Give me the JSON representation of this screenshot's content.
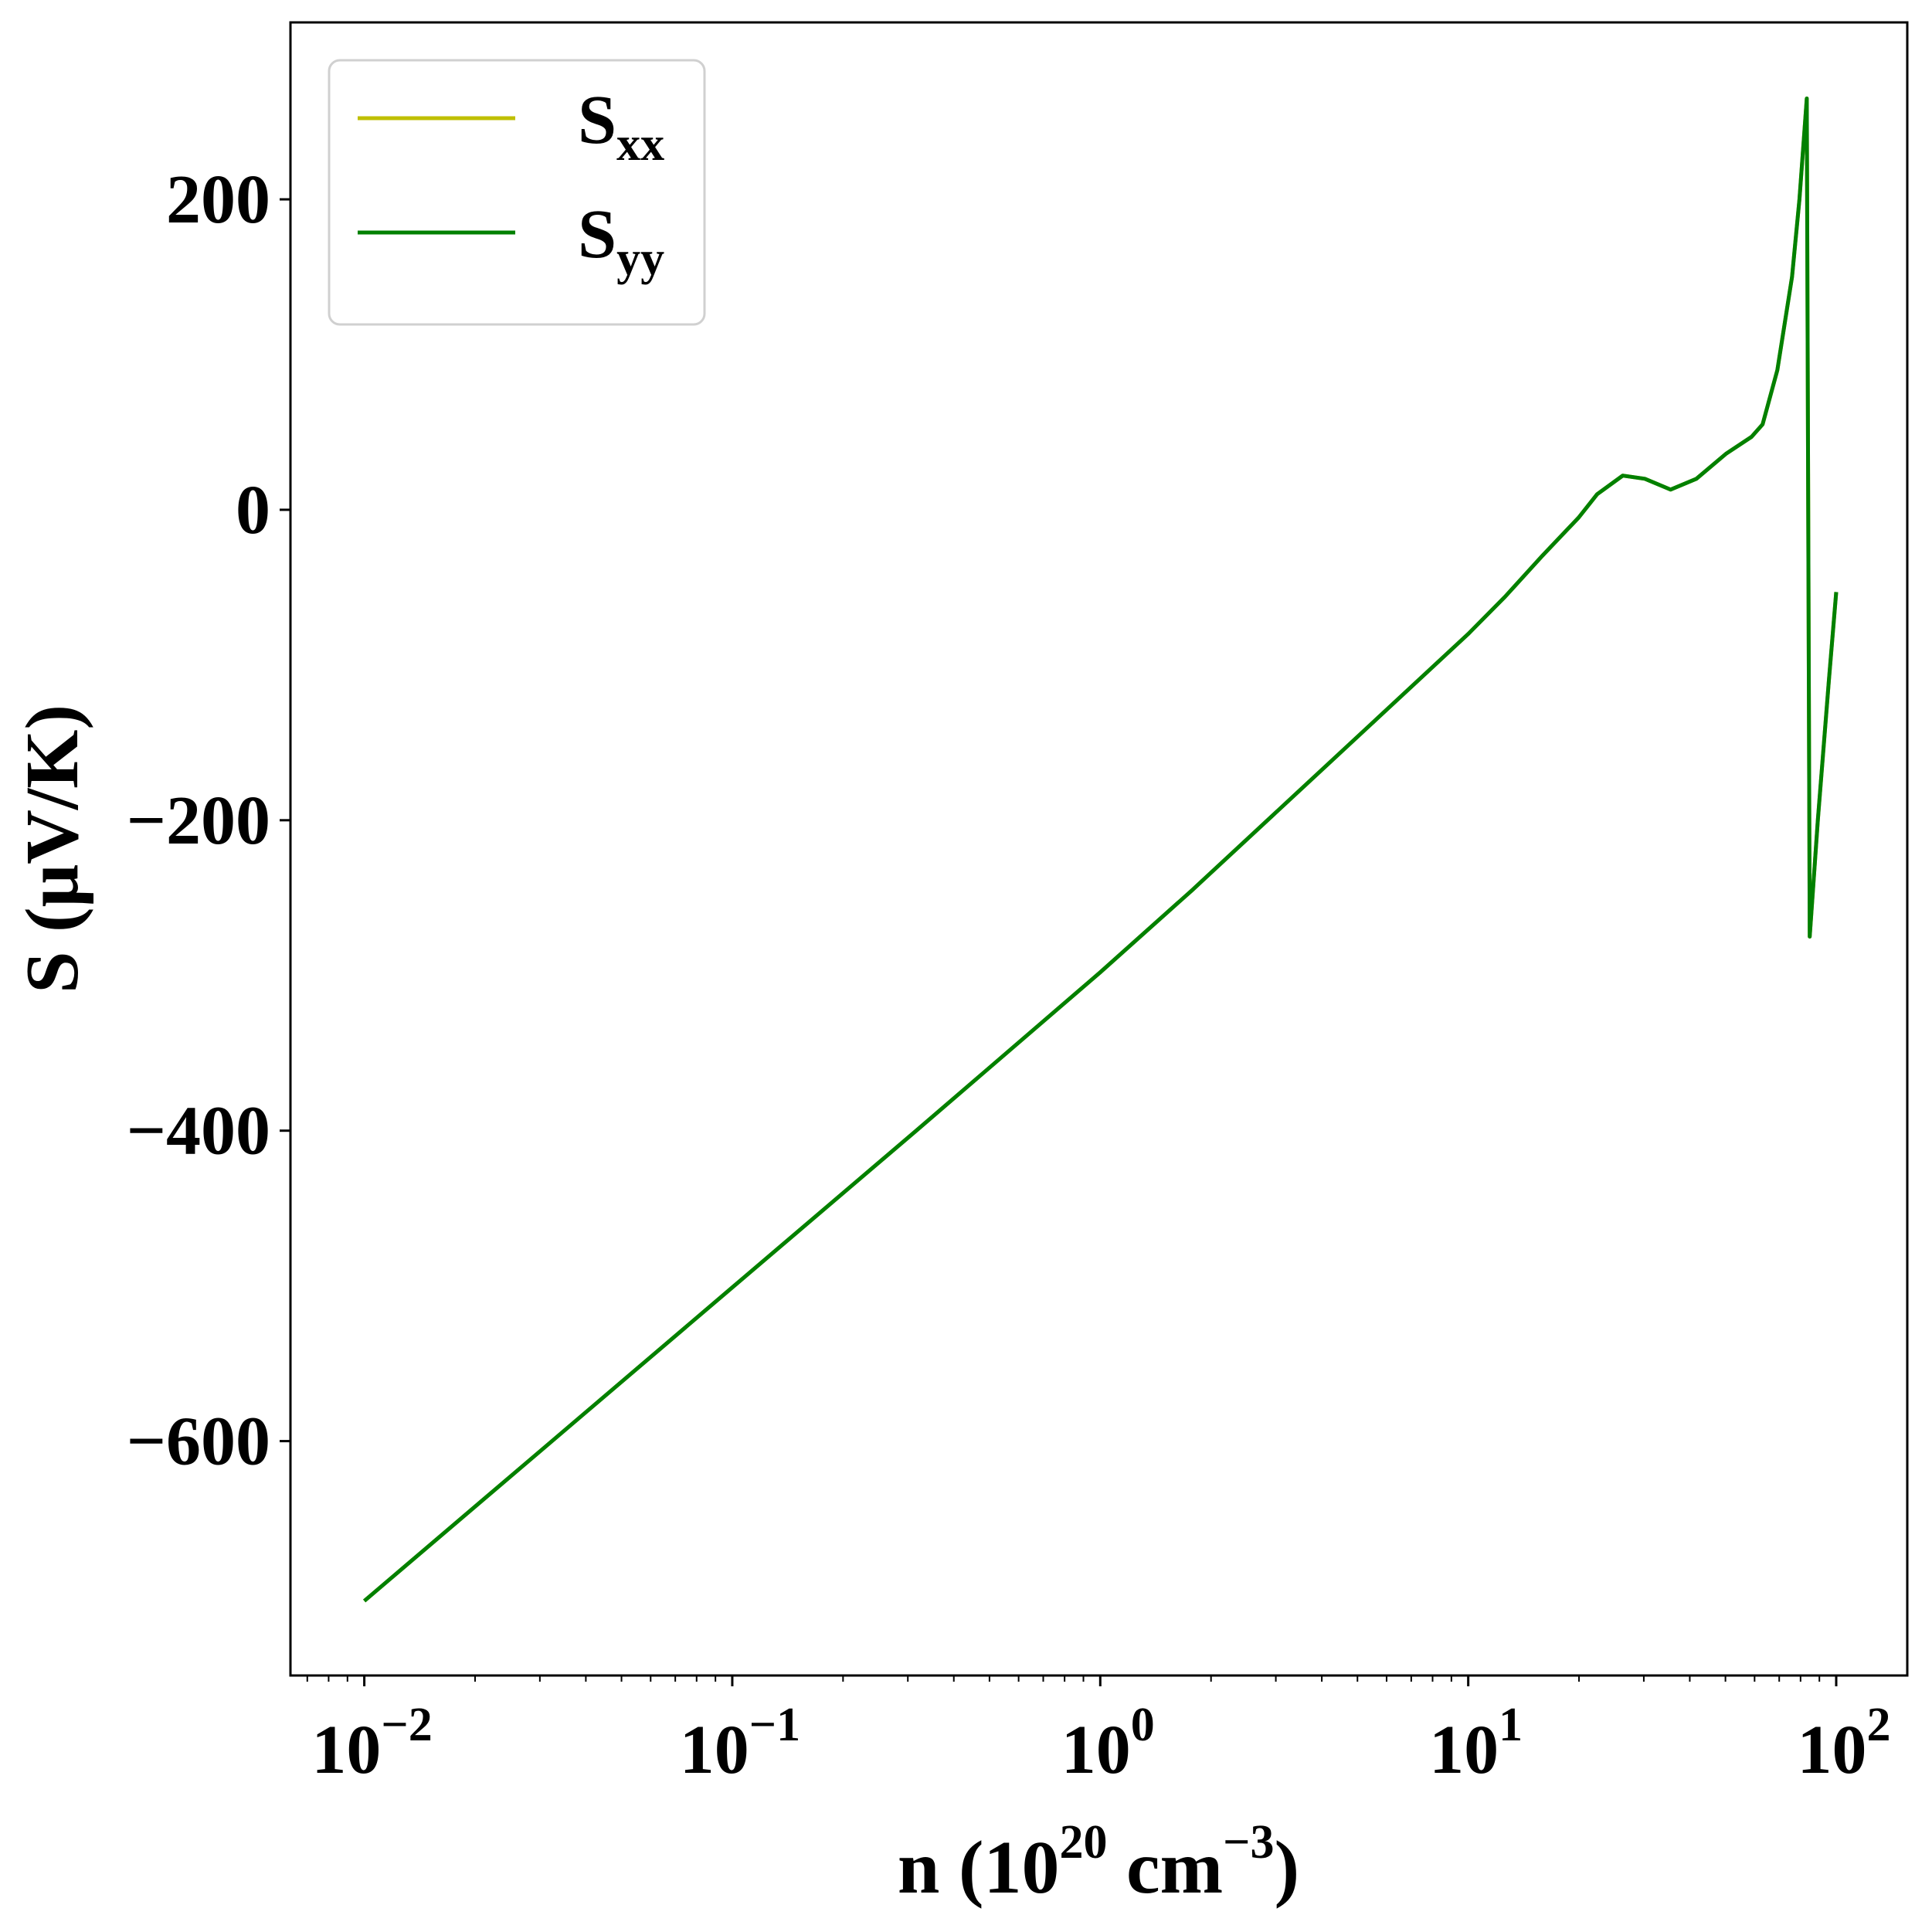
{
  "chart_data": {
    "type": "line",
    "title": "",
    "xlabel": "n (10^20 cm^-3)",
    "xlabel_parts": {
      "main": "n (10",
      "sup1": "20",
      "mid": " cm",
      "sup2": "−3",
      "end": ")"
    },
    "ylabel": "S (μV/K)",
    "xscale": "log",
    "xlim": [
      0.0063,
      156
    ],
    "ylim": [
      -751,
      314
    ],
    "grid": false,
    "legend_position": "top-left",
    "x_ticks": [
      {
        "value": 0.01,
        "base": "10",
        "exp": "−2"
      },
      {
        "value": 0.1,
        "base": "10",
        "exp": "−1"
      },
      {
        "value": 1,
        "base": "10",
        "exp": "0"
      },
      {
        "value": 10,
        "base": "10",
        "exp": "1"
      },
      {
        "value": 100,
        "base": "10",
        "exp": "2"
      }
    ],
    "y_ticks": [
      {
        "value": 200,
        "label": "200"
      },
      {
        "value": 0,
        "label": "0"
      },
      {
        "value": -200,
        "label": "−200"
      },
      {
        "value": -400,
        "label": "−400"
      },
      {
        "value": -600,
        "label": "−600"
      }
    ],
    "log10_x": [
      -2,
      -1.5,
      -1,
      -0.5,
      0,
      0.25,
      0.5,
      0.75,
      1.0,
      1.1,
      1.2,
      1.3,
      1.35,
      1.42,
      1.48,
      1.55,
      1.62,
      1.7,
      1.77,
      1.8,
      1.84,
      1.88,
      1.9,
      1.92,
      1.928,
      1.95,
      1.98,
      2.0
    ],
    "series": [
      {
        "name": "S",
        "sub": "xx",
        "color": "#bfbf00",
        "values": [
          -703,
          -602,
          -501,
          -400,
          -298,
          -245,
          -190,
          -135,
          -80,
          -56,
          -30,
          -5,
          10,
          22,
          20,
          13,
          20,
          36,
          47,
          55,
          90,
          150,
          200,
          265,
          -275,
          -200,
          -110,
          -53
        ]
      },
      {
        "name": "S",
        "sub": "yy",
        "color": "#008000",
        "values": [
          -703,
          -602,
          -501,
          -400,
          -298,
          -245,
          -190,
          -135,
          -80,
          -56,
          -30,
          -5,
          10,
          22,
          20,
          13,
          20,
          36,
          47,
          55,
          90,
          150,
          200,
          265,
          -275,
          -200,
          -110,
          -53
        ]
      }
    ]
  }
}
